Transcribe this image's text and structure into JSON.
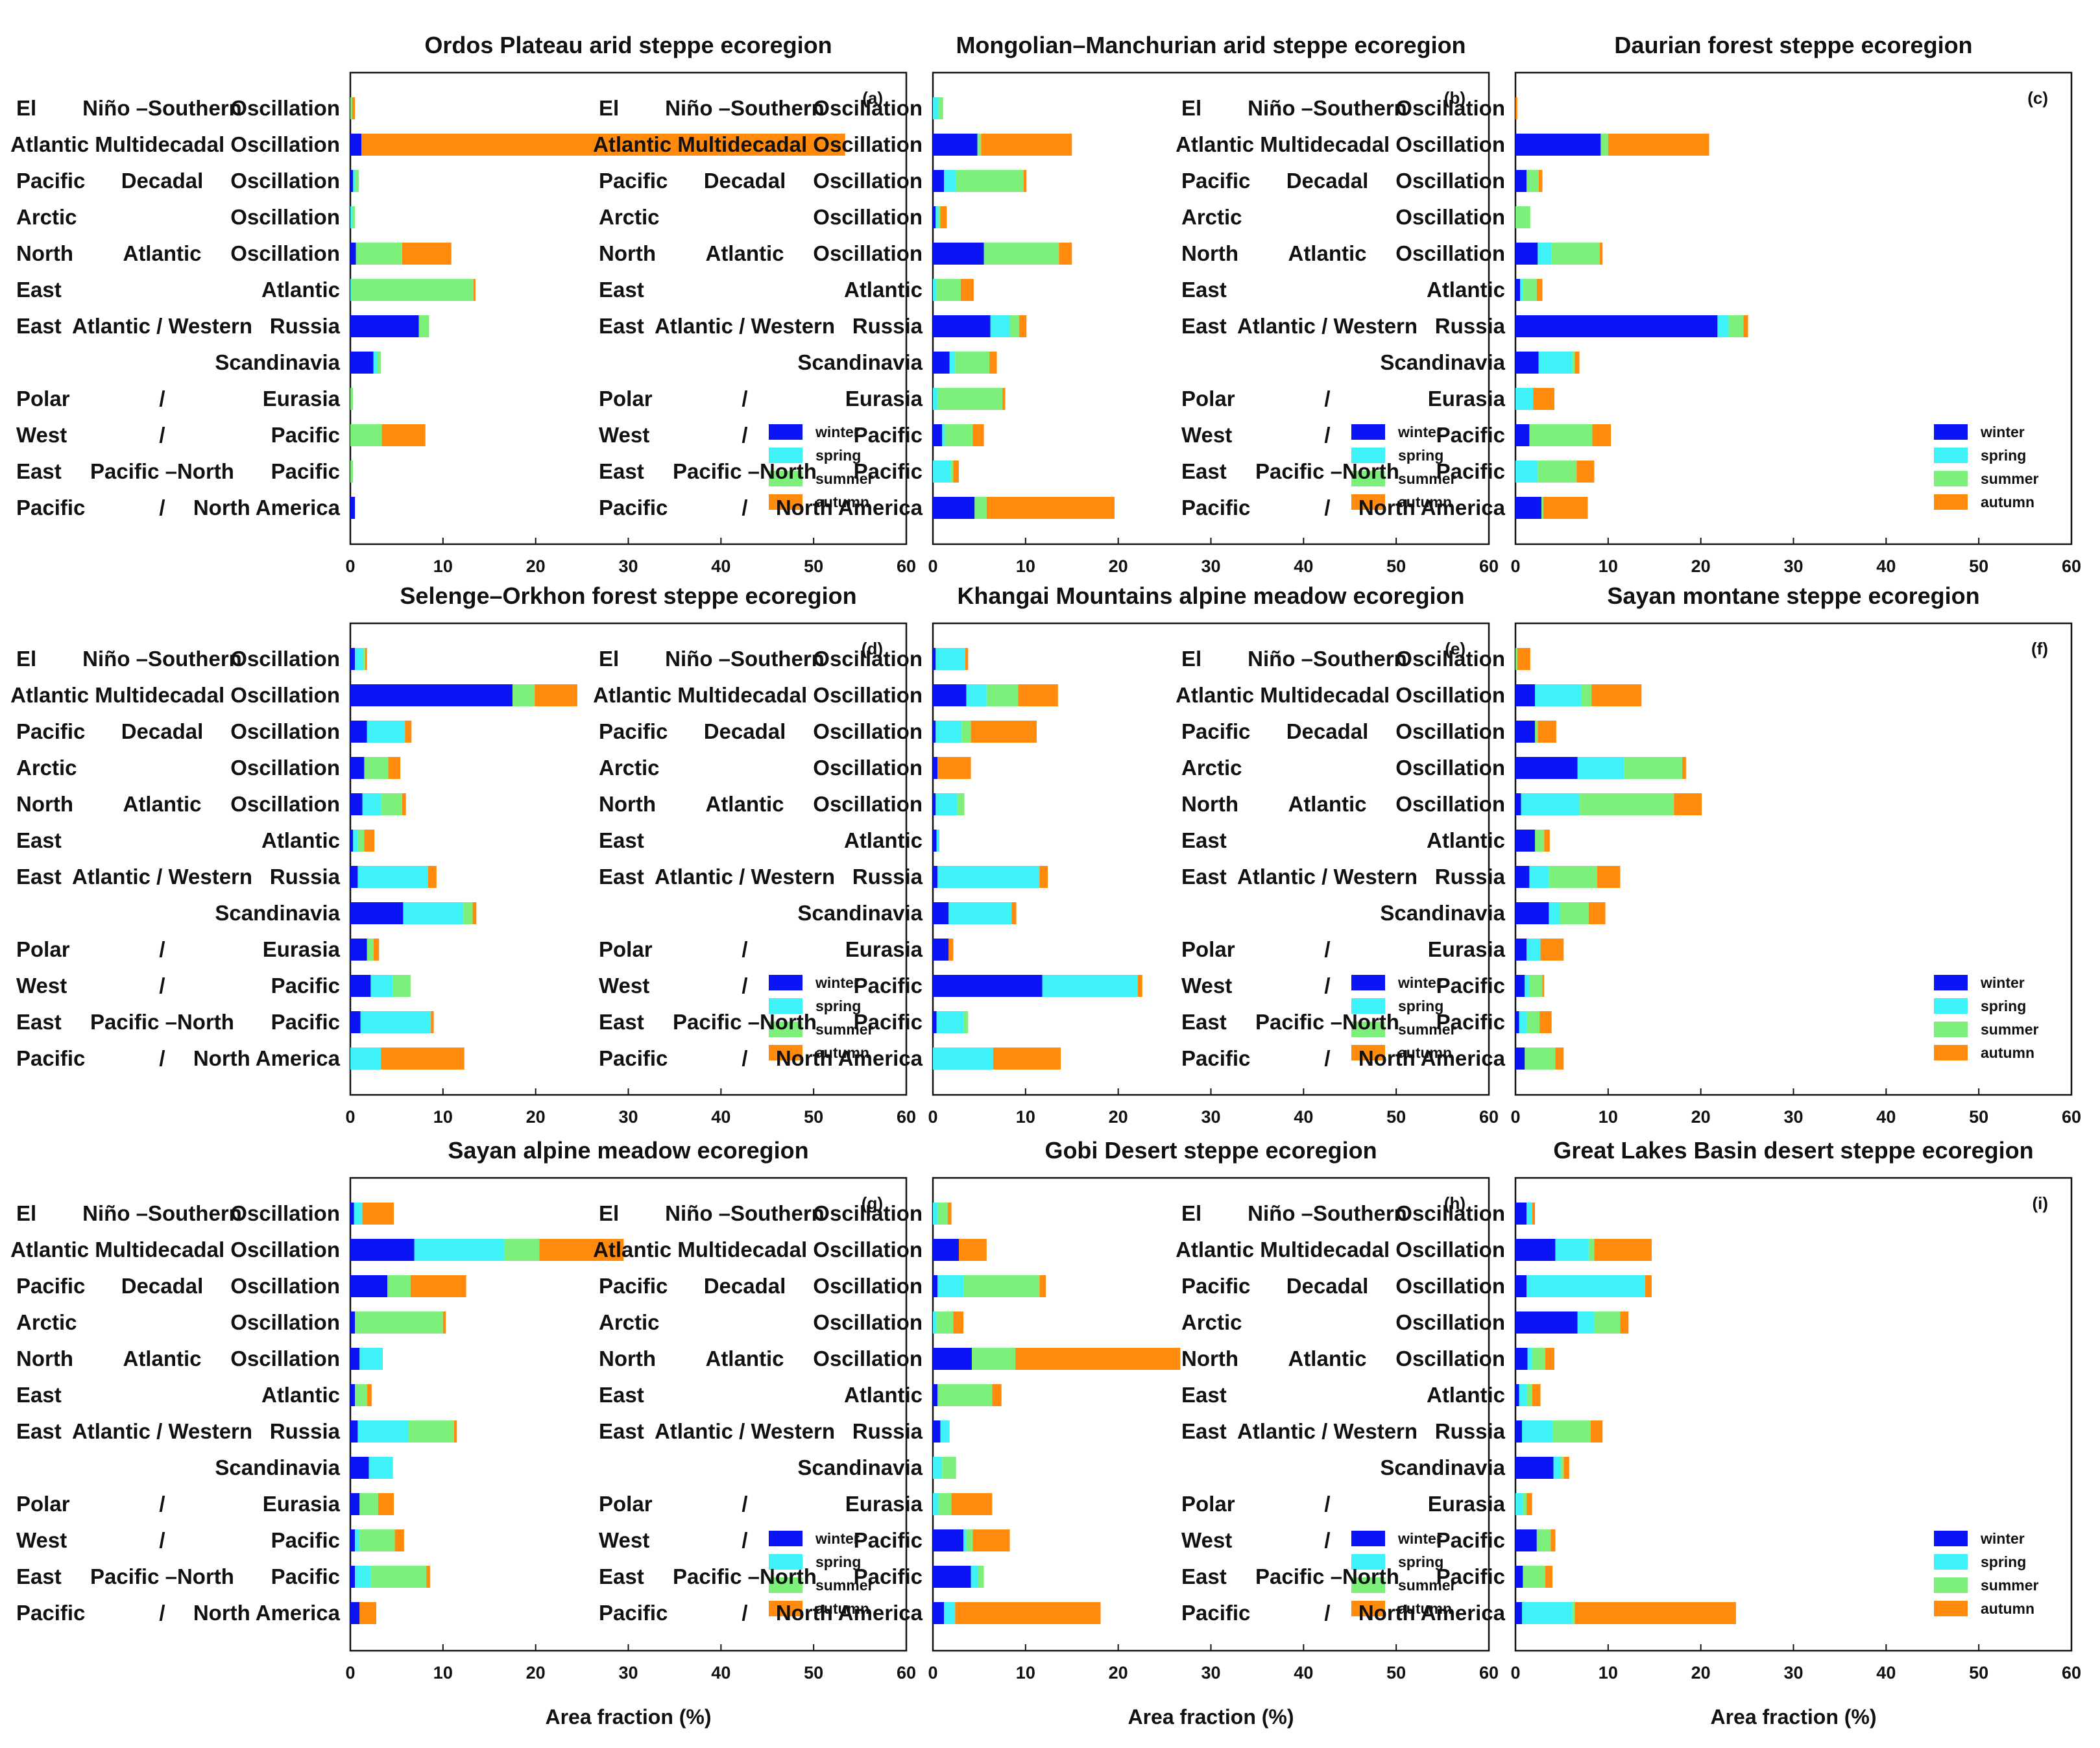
{
  "chart_data": {
    "type": "bar",
    "orientation": "horizontal",
    "stacked": true,
    "xlabel": "Area fraction (%)",
    "xlim": [
      0,
      60
    ],
    "xticks": [
      0,
      10,
      20,
      30,
      40,
      50,
      60
    ],
    "categories": [
      [
        "El",
        "Niño –Southern",
        "Oscillation"
      ],
      [
        "Atlantic Multidecadal Oscillation"
      ],
      [
        "Pacific",
        "Decadal",
        "Oscillation"
      ],
      [
        "Arctic",
        "",
        "Oscillation"
      ],
      [
        "North",
        "Atlantic",
        "Oscillation"
      ],
      [
        "East",
        "",
        "Atlantic"
      ],
      [
        "East",
        "Atlantic / Western",
        "Russia"
      ],
      [
        "",
        "",
        "Scandinavia"
      ],
      [
        "Polar",
        "/",
        "Eurasia"
      ],
      [
        "West",
        "/",
        "Pacific"
      ],
      [
        "East",
        "Pacific –North",
        "Pacific"
      ],
      [
        "Pacific",
        "/",
        "North America"
      ]
    ],
    "season_names": [
      "winter",
      "spring",
      "summer",
      "autumn"
    ],
    "season_colors": [
      "#0a14f5",
      "#3ff2f7",
      "#7cf07a",
      "#ff8a0c"
    ],
    "panels": [
      {
        "label": "(a)",
        "title": "Ordos Plateau arid steppe ecoregion",
        "values": [
          [
            0,
            0,
            0.2,
            0.3
          ],
          [
            1.2,
            0,
            0,
            52.2
          ],
          [
            0.3,
            0.2,
            0.4,
            0
          ],
          [
            0,
            0.2,
            0.3,
            0
          ],
          [
            0.6,
            0,
            5,
            5.3
          ],
          [
            0,
            0.1,
            13.2,
            0.2
          ],
          [
            7.4,
            0,
            1.1,
            0
          ],
          [
            2.5,
            0.4,
            0.4,
            0
          ],
          [
            0,
            0,
            0.3,
            0
          ],
          [
            0,
            0,
            3.4,
            4.7
          ],
          [
            0,
            0,
            0.3,
            0
          ],
          [
            0.5,
            0,
            0,
            0
          ]
        ]
      },
      {
        "label": "(b)",
        "title": "Mongolian–Manchurian arid steppe ecoregion",
        "values": [
          [
            0,
            0.6,
            0.5,
            0
          ],
          [
            4.8,
            0,
            0.4,
            9.8
          ],
          [
            1.2,
            1.3,
            7.3,
            0.3
          ],
          [
            0.3,
            0.3,
            0.2,
            0.7
          ],
          [
            5.5,
            0,
            8.1,
            1.4
          ],
          [
            0,
            0.4,
            2.6,
            1.4
          ],
          [
            6.2,
            2.1,
            1,
            0.8
          ],
          [
            1.8,
            0.6,
            3.7,
            0.8
          ],
          [
            0,
            0.5,
            7,
            0.3
          ],
          [
            1,
            0.3,
            3,
            1.2
          ],
          [
            0,
            1.9,
            0.3,
            0.6
          ],
          [
            4.5,
            0,
            1.3,
            13.8
          ]
        ]
      },
      {
        "label": "(c)",
        "title": "Daurian forest steppe ecoregion",
        "values": [
          [
            0,
            0,
            0,
            0.2
          ],
          [
            9.2,
            0,
            0.8,
            10.9
          ],
          [
            1.2,
            0,
            1.3,
            0.4
          ],
          [
            0,
            0,
            1.6,
            0
          ],
          [
            2.4,
            1.5,
            5.2,
            0.3
          ],
          [
            0.5,
            0.3,
            1.5,
            0.6
          ],
          [
            21.8,
            1.2,
            1.6,
            0.5
          ],
          [
            2.5,
            3.6,
            0.3,
            0.5
          ],
          [
            0,
            1.9,
            0,
            2.3
          ],
          [
            1.5,
            0,
            6.8,
            2
          ],
          [
            0,
            2.4,
            4.2,
            1.9
          ],
          [
            2.8,
            0,
            0.2,
            4.8
          ]
        ]
      },
      {
        "label": "(d)",
        "title": "Selenge–Orkhon forest steppe ecoregion",
        "values": [
          [
            0.5,
            0.9,
            0.2,
            0.2
          ],
          [
            17.5,
            0,
            2.4,
            4.6
          ],
          [
            1.8,
            4.1,
            0,
            0.7
          ],
          [
            1.5,
            0,
            2.6,
            1.3
          ],
          [
            1.3,
            2,
            2.3,
            0.4
          ],
          [
            0.3,
            0.5,
            0.7,
            1.1
          ],
          [
            0.8,
            7.6,
            0,
            0.9
          ],
          [
            5.7,
            6.5,
            1,
            0.4
          ],
          [
            1.8,
            0,
            0.7,
            0.6
          ],
          [
            2.2,
            2.4,
            1.9,
            0
          ],
          [
            1.1,
            7.6,
            0,
            0.3
          ],
          [
            0,
            3.3,
            0,
            9
          ]
        ]
      },
      {
        "label": "(e)",
        "title": "Khangai Mountains alpine meadow ecoregion",
        "values": [
          [
            0.3,
            3.2,
            0,
            0.3
          ],
          [
            3.6,
            2.2,
            3.4,
            4.3
          ],
          [
            0.3,
            2.8,
            1,
            7.1
          ],
          [
            0.5,
            0,
            0,
            3.6
          ],
          [
            0.3,
            2.3,
            0.8,
            0
          ],
          [
            0.4,
            0.3,
            0,
            0
          ],
          [
            0.5,
            11,
            0,
            0.9
          ],
          [
            1.7,
            6.8,
            0,
            0.5
          ],
          [
            1.7,
            0,
            0,
            0.5
          ],
          [
            11.8,
            10.3,
            0,
            0.5
          ],
          [
            0.4,
            2.9,
            0.5,
            0
          ],
          [
            0,
            6.5,
            0,
            7.3
          ]
        ]
      },
      {
        "label": "(f)",
        "title": "Sayan montane steppe ecoregion",
        "values": [
          [
            0,
            0,
            0.2,
            1.4
          ],
          [
            2.1,
            5,
            1.1,
            5.4
          ],
          [
            2.1,
            0,
            0.3,
            2
          ],
          [
            6.7,
            5,
            6.3,
            0.4
          ],
          [
            0.6,
            6.3,
            10.2,
            3
          ],
          [
            2.1,
            0,
            1,
            0.6
          ],
          [
            1.5,
            2.1,
            5.2,
            2.5
          ],
          [
            3.6,
            1.2,
            3.1,
            1.8
          ],
          [
            1.2,
            1.5,
            0,
            2.5
          ],
          [
            1,
            0.5,
            1.4,
            0.2
          ],
          [
            0.4,
            0.8,
            1.4,
            1.3
          ],
          [
            1,
            0,
            3.3,
            0.9
          ]
        ]
      },
      {
        "label": "(g)",
        "title": "Sayan alpine meadow ecoregion",
        "values": [
          [
            0.4,
            0.9,
            0,
            3.4
          ],
          [
            6.9,
            9.7,
            3.8,
            9.1
          ],
          [
            4,
            0,
            2.5,
            6
          ],
          [
            0.5,
            0,
            9.5,
            0.3
          ],
          [
            1,
            2.5,
            0,
            0
          ],
          [
            0.5,
            0,
            1.3,
            0.5
          ],
          [
            0.8,
            5.5,
            4.9,
            0.3
          ],
          [
            2,
            2.6,
            0,
            0
          ],
          [
            1,
            0,
            2,
            1.7
          ],
          [
            0.5,
            0.5,
            3.8,
            1
          ],
          [
            0.5,
            1.7,
            6,
            0.4
          ],
          [
            1,
            0,
            0,
            1.8
          ]
        ]
      },
      {
        "label": "(h)",
        "title": "Gobi Desert steppe ecoregion",
        "values": [
          [
            0,
            0.5,
            1.1,
            0.4
          ],
          [
            2.8,
            0,
            0,
            3
          ],
          [
            0.5,
            2.8,
            8.2,
            0.7
          ],
          [
            0,
            0.4,
            1.8,
            1.1
          ],
          [
            4.2,
            0,
            4.7,
            17.8
          ],
          [
            0.5,
            0,
            5.9,
            1
          ],
          [
            0.8,
            1,
            0,
            0
          ],
          [
            0,
            1,
            1.5,
            0
          ],
          [
            0,
            0.6,
            1.4,
            4.4
          ],
          [
            3.3,
            0.3,
            0.7,
            4
          ],
          [
            4.1,
            0.8,
            0.6,
            0
          ],
          [
            1.2,
            1.2,
            0,
            15.7
          ]
        ]
      },
      {
        "label": "(i)",
        "title": "Great Lakes Basin desert steppe ecoregion",
        "values": [
          [
            1.2,
            0.6,
            0,
            0.3
          ],
          [
            4.3,
            3.6,
            0.6,
            6.2
          ],
          [
            1.2,
            12.8,
            0,
            0.7
          ],
          [
            6.7,
            1.8,
            2.8,
            0.9
          ],
          [
            1.3,
            0.5,
            1.4,
            1
          ],
          [
            0.4,
            0.8,
            0.6,
            0.9
          ],
          [
            0.7,
            3.3,
            4.1,
            1.3
          ],
          [
            4.1,
            0.8,
            0.3,
            0.6
          ],
          [
            0,
            0.8,
            0.4,
            0.6
          ],
          [
            2.3,
            0,
            1.5,
            0.5
          ],
          [
            0.8,
            0,
            2.4,
            0.8
          ],
          [
            0.7,
            5.4,
            0.3,
            17.4
          ]
        ]
      }
    ]
  }
}
